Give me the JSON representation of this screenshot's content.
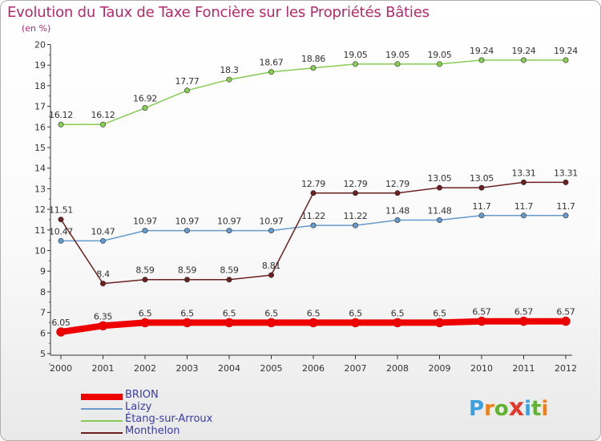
{
  "header": {
    "title": "Evolution du Taux de Taxe Foncière sur les Propriétés Bâties",
    "unit": "(en %)"
  },
  "logo": {
    "letters": [
      "P",
      "r",
      "o",
      "x",
      "i",
      "t",
      "i"
    ],
    "colors": [
      "#3aa0e0",
      "#ef7f1a",
      "#5fb32f",
      "#e23b2e",
      "#3aa0e0",
      "#5fb32f",
      "#ef7f1a"
    ]
  },
  "chart_data": {
    "type": "line",
    "title": "Evolution du Taux de Taxe Foncière sur les Propriétés Bâties",
    "ylabel": "(en %)",
    "x": [
      "2000",
      "2001",
      "2002",
      "2003",
      "2004",
      "2005",
      "2006",
      "2007",
      "2008",
      "2009",
      "2010",
      "2011",
      "2012"
    ],
    "ylim": [
      5,
      20
    ],
    "yticks": [
      "5",
      "6",
      "7",
      "8",
      "9",
      "10",
      "11",
      "12",
      "13",
      "14",
      "15",
      "16",
      "17",
      "18",
      "19",
      "20"
    ],
    "grid": false,
    "legend_position": "bottom-left",
    "series": [
      {
        "name": "BRION",
        "color": "#ee0000",
        "values": [
          6.05,
          6.35,
          6.5,
          6.5,
          6.5,
          6.5,
          6.5,
          6.5,
          6.5,
          6.5,
          6.57,
          6.57,
          6.57
        ],
        "labels": [
          "6.05",
          "6.35",
          "6.5",
          "6.5",
          "6.5",
          "6.5",
          "6.5",
          "6.5",
          "6.5",
          "6.5",
          "6.57",
          "6.57",
          "6.57"
        ]
      },
      {
        "name": "Laizy",
        "color": "#6699cc",
        "values": [
          10.47,
          10.47,
          10.97,
          10.97,
          10.97,
          10.97,
          11.22,
          11.22,
          11.48,
          11.48,
          11.7,
          11.7,
          11.7
        ],
        "labels": [
          "10.47",
          "10.47",
          "10.97",
          "10.97",
          "10.97",
          "10.97",
          "11.22",
          "11.22",
          "11.48",
          "11.48",
          "11.7",
          "11.7",
          "11.7"
        ]
      },
      {
        "name": "Étang-sur-Arroux",
        "color": "#88cc55",
        "values": [
          16.12,
          16.12,
          16.92,
          17.77,
          18.3,
          18.67,
          18.86,
          19.05,
          19.05,
          19.05,
          19.24,
          19.24,
          19.24
        ],
        "labels": [
          "16.12",
          "16.12",
          "16.92",
          "17.77",
          "18.3",
          "18.67",
          "18.86",
          "19.05",
          "19.05",
          "19.05",
          "19.24",
          "19.24",
          "19.24"
        ]
      },
      {
        "name": "Monthelon",
        "color": "#6b2020",
        "values": [
          11.51,
          8.4,
          8.59,
          8.59,
          8.59,
          8.81,
          12.79,
          12.79,
          12.79,
          13.05,
          13.05,
          13.31,
          13.31
        ],
        "labels": [
          "11.51",
          "8.4",
          "8.59",
          "8.59",
          "8.59",
          "8.81",
          "12.79",
          "12.79",
          "12.79",
          "13.05",
          "13.05",
          "13.31",
          "13.31"
        ]
      }
    ]
  }
}
